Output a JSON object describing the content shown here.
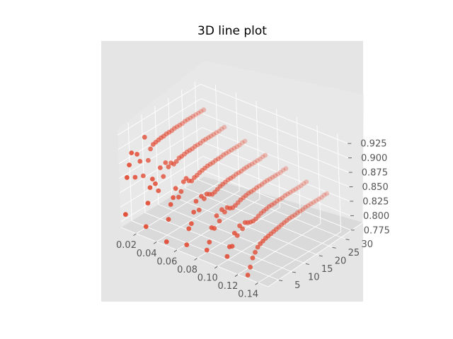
{
  "chart_data": {
    "type": "scatter",
    "projection": "3d",
    "title": "3D line plot",
    "xlabel": "",
    "ylabel": "",
    "zlabel": "",
    "grid": true,
    "xlim": [
      0.005,
      0.15
    ],
    "ylim": [
      1,
      32
    ],
    "zlim": [
      0.765,
      0.935
    ],
    "xticks": [
      "0.02",
      "0.04",
      "0.06",
      "0.08",
      "0.10",
      "0.12",
      "0.14"
    ],
    "yticks": [
      "5",
      "10",
      "15",
      "20",
      "25",
      "30"
    ],
    "zticks": [
      "0.775",
      "0.800",
      "0.825",
      "0.850",
      "0.875",
      "0.900",
      "0.925"
    ],
    "marker_color": "#E24A33",
    "pane_color": "#E5E5E5",
    "series": [
      {
        "x": [
          0.01,
          0.01,
          0.01,
          0.01,
          0.01,
          0.01,
          0.01,
          0.01,
          0.01,
          0.01,
          0.01,
          0.01,
          0.01,
          0.01,
          0.01,
          0.01,
          0.01,
          0.01,
          0.01,
          0.01,
          0.01,
          0.01,
          0.01,
          0.01,
          0.01,
          0.01,
          0.01,
          0.01,
          0.01,
          0.01,
          0.01,
          0.03,
          0.03,
          0.03,
          0.03,
          0.03,
          0.03,
          0.03,
          0.03,
          0.03,
          0.03,
          0.03,
          0.03,
          0.03,
          0.03,
          0.03,
          0.03,
          0.03,
          0.03,
          0.03,
          0.03,
          0.03,
          0.03,
          0.03,
          0.03,
          0.03,
          0.03,
          0.03,
          0.03,
          0.03,
          0.03,
          0.03,
          0.05,
          0.05,
          0.05,
          0.05,
          0.05,
          0.05,
          0.05,
          0.05,
          0.05,
          0.05,
          0.05,
          0.05,
          0.05,
          0.05,
          0.05,
          0.05,
          0.05,
          0.05,
          0.05,
          0.05,
          0.05,
          0.05,
          0.05,
          0.05,
          0.05,
          0.05,
          0.05,
          0.05,
          0.05,
          0.05,
          0.05,
          0.07,
          0.07,
          0.07,
          0.07,
          0.07,
          0.07,
          0.07,
          0.07,
          0.07,
          0.07,
          0.07,
          0.07,
          0.07,
          0.07,
          0.07,
          0.07,
          0.07,
          0.07,
          0.07,
          0.07,
          0.07,
          0.07,
          0.07,
          0.07,
          0.07,
          0.07,
          0.07,
          0.07,
          0.07,
          0.07,
          0.07,
          0.09,
          0.09,
          0.09,
          0.09,
          0.09,
          0.09,
          0.09,
          0.09,
          0.09,
          0.09,
          0.09,
          0.09,
          0.09,
          0.09,
          0.09,
          0.09,
          0.09,
          0.09,
          0.09,
          0.09,
          0.09,
          0.09,
          0.09,
          0.09,
          0.09,
          0.09,
          0.09,
          0.09,
          0.09,
          0.09,
          0.09,
          0.11,
          0.11,
          0.11,
          0.11,
          0.11,
          0.11,
          0.11,
          0.11,
          0.11,
          0.11,
          0.11,
          0.11,
          0.11,
          0.11,
          0.11,
          0.11,
          0.11,
          0.11,
          0.11,
          0.11,
          0.11,
          0.11,
          0.11,
          0.11,
          0.11,
          0.11,
          0.11,
          0.11,
          0.11,
          0.11,
          0.11,
          0.13,
          0.13,
          0.13,
          0.13,
          0.13,
          0.13,
          0.13,
          0.13,
          0.13,
          0.13,
          0.13,
          0.13,
          0.13,
          0.13,
          0.13,
          0.13,
          0.13,
          0.13,
          0.13,
          0.13,
          0.13,
          0.13,
          0.13,
          0.13,
          0.13,
          0.13,
          0.13,
          0.13,
          0.13,
          0.13,
          0.13
        ],
        "y": [
          1,
          2,
          3,
          4,
          5,
          6,
          7,
          8,
          9,
          10,
          11,
          12,
          13,
          14,
          15,
          16,
          17,
          18,
          19,
          20,
          21,
          22,
          23,
          24,
          25,
          26,
          27,
          28,
          29,
          30,
          31,
          1,
          2,
          3,
          4,
          5,
          6,
          7,
          8,
          9,
          10,
          11,
          12,
          13,
          14,
          15,
          16,
          17,
          18,
          19,
          20,
          21,
          22,
          23,
          24,
          25,
          26,
          27,
          28,
          29,
          30,
          31,
          1,
          2,
          3,
          4,
          5,
          6,
          7,
          8,
          9,
          10,
          11,
          12,
          13,
          14,
          15,
          16,
          17,
          18,
          19,
          20,
          21,
          22,
          23,
          24,
          25,
          26,
          27,
          28,
          29,
          30,
          31,
          1,
          2,
          3,
          4,
          5,
          6,
          7,
          8,
          9,
          10,
          11,
          12,
          13,
          14,
          15,
          16,
          17,
          18,
          19,
          20,
          21,
          22,
          23,
          24,
          25,
          26,
          27,
          28,
          29,
          30,
          31,
          1,
          2,
          3,
          4,
          5,
          6,
          7,
          8,
          9,
          10,
          11,
          12,
          13,
          14,
          15,
          16,
          17,
          18,
          19,
          20,
          21,
          22,
          23,
          24,
          25,
          26,
          27,
          28,
          29,
          30,
          31,
          1,
          2,
          3,
          4,
          5,
          6,
          7,
          8,
          9,
          10,
          11,
          12,
          13,
          14,
          15,
          16,
          17,
          18,
          19,
          20,
          21,
          22,
          23,
          24,
          25,
          26,
          27,
          28,
          29,
          30,
          31,
          1,
          2,
          3,
          4,
          5,
          6,
          7,
          8,
          9,
          10,
          11,
          12,
          13,
          14,
          15,
          16,
          17,
          18,
          19,
          20,
          21,
          22,
          23,
          24,
          25,
          26,
          27,
          28,
          29,
          30,
          31
        ],
        "z": [
          0.791,
          0.852,
          0.871,
          0.889,
          0.844,
          0.881,
          0.866,
          0.838,
          0.902,
          0.859,
          0.876,
          0.881,
          0.882,
          0.883,
          0.884,
          0.884,
          0.885,
          0.885,
          0.885,
          0.886,
          0.886,
          0.886,
          0.886,
          0.887,
          0.887,
          0.887,
          0.887,
          0.887,
          0.887,
          0.887,
          0.887,
          0.784,
          0.822,
          0.846,
          0.858,
          0.847,
          0.832,
          0.869,
          0.851,
          0.872,
          0.862,
          0.866,
          0.861,
          0.863,
          0.866,
          0.866,
          0.867,
          0.868,
          0.868,
          0.868,
          0.869,
          0.869,
          0.869,
          0.87,
          0.87,
          0.87,
          0.87,
          0.87,
          0.87,
          0.87,
          0.871,
          0.871,
          0.772,
          0.808,
          0.831,
          0.84,
          0.853,
          0.835,
          0.842,
          0.856,
          0.859,
          0.852,
          0.849,
          0.852,
          0.853,
          0.855,
          0.856,
          0.857,
          0.858,
          0.858,
          0.858,
          0.859,
          0.859,
          0.859,
          0.86,
          0.86,
          0.86,
          0.86,
          0.86,
          0.86,
          0.86,
          0.861,
          0.861,
          0.781,
          0.806,
          0.812,
          0.829,
          0.845,
          0.827,
          0.848,
          0.841,
          0.846,
          0.843,
          0.84,
          0.841,
          0.843,
          0.845,
          0.846,
          0.847,
          0.848,
          0.848,
          0.848,
          0.849,
          0.849,
          0.849,
          0.85,
          0.85,
          0.85,
          0.85,
          0.85,
          0.85,
          0.85,
          0.851,
          0.851,
          0.786,
          0.797,
          0.819,
          0.815,
          0.834,
          0.822,
          0.839,
          0.832,
          0.837,
          0.833,
          0.831,
          0.832,
          0.834,
          0.836,
          0.837,
          0.838,
          0.839,
          0.839,
          0.839,
          0.84,
          0.84,
          0.84,
          0.841,
          0.841,
          0.841,
          0.841,
          0.841,
          0.841,
          0.841,
          0.842,
          0.842,
          0.789,
          0.803,
          0.801,
          0.821,
          0.814,
          0.828,
          0.82,
          0.828,
          0.825,
          0.823,
          0.822,
          0.823,
          0.825,
          0.827,
          0.828,
          0.829,
          0.83,
          0.83,
          0.83,
          0.831,
          0.831,
          0.831,
          0.832,
          0.832,
          0.832,
          0.832,
          0.832,
          0.832,
          0.832,
          0.833,
          0.833,
          0.771,
          0.782,
          0.795,
          0.802,
          0.808,
          0.811,
          0.813,
          0.815,
          0.816,
          0.817,
          0.818,
          0.819,
          0.82,
          0.821,
          0.822,
          0.823,
          0.824,
          0.824,
          0.824,
          0.825,
          0.825,
          0.825,
          0.826,
          0.826,
          0.826,
          0.826,
          0.826,
          0.826,
          0.826,
          0.827,
          0.827
        ]
      }
    ]
  }
}
